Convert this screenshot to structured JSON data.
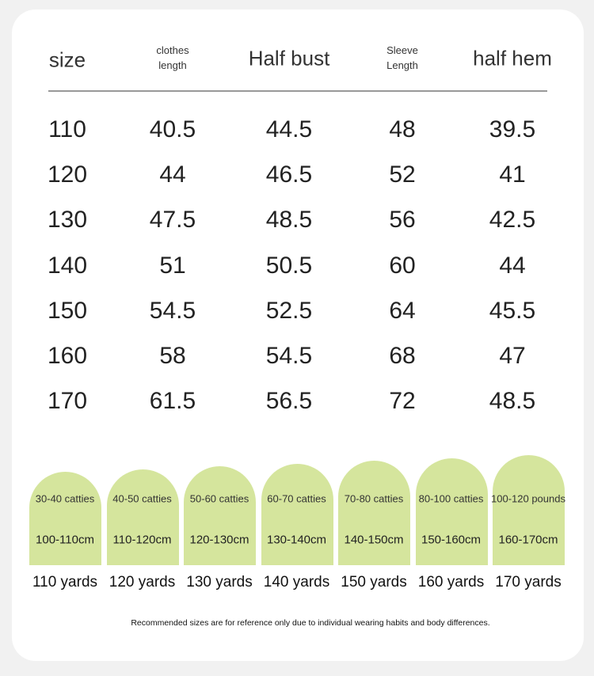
{
  "table": {
    "header": [
      "size",
      "clothes length",
      "Half bust",
      "Sleeve Length",
      "half hem"
    ],
    "rows": [
      [
        "110",
        "40.5",
        "44.5",
        "48",
        "39.5"
      ],
      [
        "120",
        "44",
        "46.5",
        "52",
        "41"
      ],
      [
        "130",
        "47.5",
        "48.5",
        "56",
        "42.5"
      ],
      [
        "140",
        "51",
        "50.5",
        "60",
        "44"
      ],
      [
        "150",
        "54.5",
        "52.5",
        "64",
        "45.5"
      ],
      [
        "160",
        "58",
        "54.5",
        "68",
        "47"
      ],
      [
        "170",
        "61.5",
        "56.5",
        "72",
        "48.5"
      ]
    ]
  },
  "cards": [
    {
      "weight": "30-40 catties",
      "height": "100-110cm",
      "size": "110 yards"
    },
    {
      "weight": "40-50 catties",
      "height": "110-120cm",
      "size": "120 yards"
    },
    {
      "weight": "50-60 catties",
      "height": "120-130cm",
      "size": "130 yards"
    },
    {
      "weight": "60-70 catties",
      "height": "130-140cm",
      "size": "140 yards"
    },
    {
      "weight": "70-80 catties",
      "height": "140-150cm",
      "size": "150 yards"
    },
    {
      "weight": "80-100 catties",
      "height": "150-160cm",
      "size": "160 yards"
    },
    {
      "weight": "100-120 pounds",
      "height": "160-170cm",
      "size": "170 yards"
    }
  ],
  "footnote": "Recommended sizes are for reference only due to individual wearing habits and body differences."
}
